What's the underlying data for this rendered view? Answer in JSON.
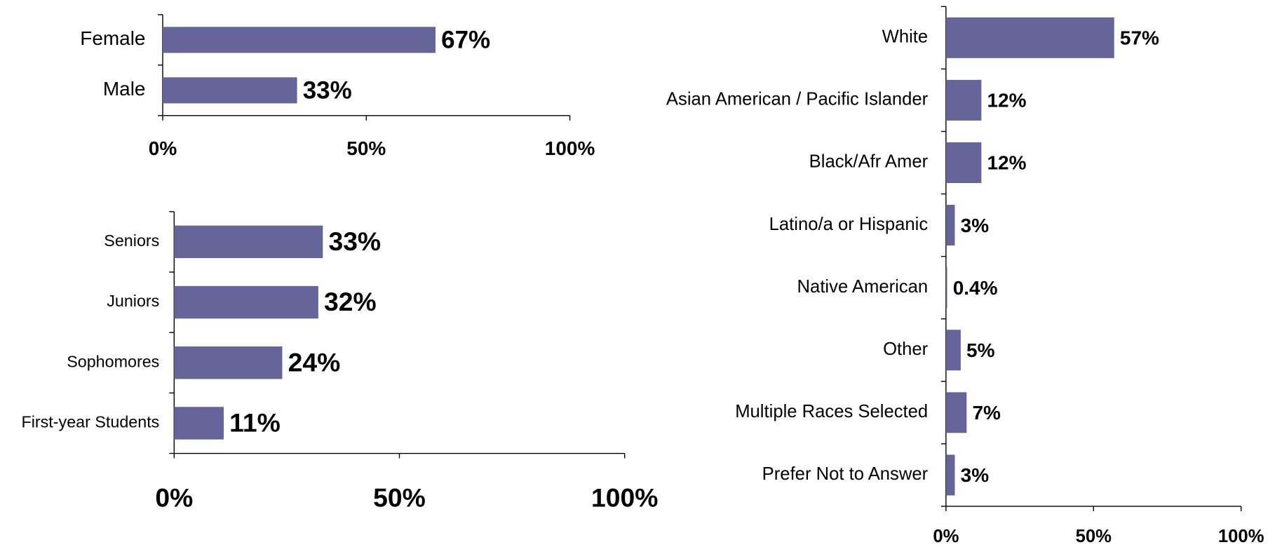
{
  "chart_data": [
    {
      "type": "barh",
      "categories": [
        "Female",
        "Male"
      ],
      "values": [
        67,
        33
      ],
      "value_labels": [
        "67%",
        "33%"
      ],
      "color": "#65659a",
      "xlim": [
        0,
        100
      ],
      "xticks": [
        {
          "value": 0,
          "label": "0%"
        },
        {
          "value": 50,
          "label": "50%"
        },
        {
          "value": 100,
          "label": "100%"
        }
      ]
    },
    {
      "type": "barh",
      "categories": [
        "Seniors",
        "Juniors",
        "Sophomores",
        "First-year Students"
      ],
      "values": [
        33,
        32,
        24,
        11
      ],
      "value_labels": [
        "33%",
        "32%",
        "24%",
        "11%"
      ],
      "color": "#65659a",
      "xlim": [
        0,
        100
      ],
      "xticks": [
        {
          "value": 0,
          "label": "0%"
        },
        {
          "value": 50,
          "label": "50%"
        },
        {
          "value": 100,
          "label": "100%"
        }
      ]
    },
    {
      "type": "barh",
      "categories": [
        "White",
        "Asian American / Pacific Islander",
        "Black/Afr Amer",
        "Latino/a or Hispanic",
        "Native American",
        "Other",
        "Multiple Races Selected",
        "Prefer Not to Answer"
      ],
      "values": [
        57,
        12,
        12,
        3,
        0.4,
        5,
        7,
        3
      ],
      "value_labels": [
        "57%",
        "12%",
        "12%",
        "3%",
        "0.4%",
        "5%",
        "7%",
        "3%"
      ],
      "color": "#65659a",
      "xlim": [
        0,
        100
      ],
      "xticks": [
        {
          "value": 0,
          "label": "0%"
        },
        {
          "value": 50,
          "label": "50%"
        },
        {
          "value": 100,
          "label": "100%"
        }
      ]
    }
  ]
}
